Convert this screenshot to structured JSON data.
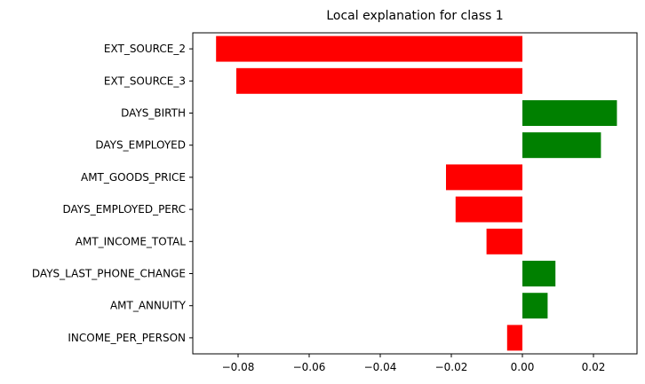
{
  "chart_data": {
    "type": "bar",
    "orientation": "horizontal",
    "title": "Local explanation for class 1",
    "xlabel": "",
    "ylabel": "",
    "categories": [
      "EXT_SOURCE_2",
      "EXT_SOURCE_3",
      "DAYS_BIRTH",
      "DAYS_EMPLOYED",
      "AMT_GOODS_PRICE",
      "DAYS_EMPLOYED_PERC",
      "AMT_INCOME_TOTAL",
      "DAYS_LAST_PHONE_CHANGE",
      "AMT_ANNUITY",
      "INCOME_PER_PERSON"
    ],
    "values": [
      -0.0862,
      -0.0805,
      0.0266,
      0.0221,
      -0.0215,
      -0.0188,
      -0.0101,
      0.0093,
      0.0071,
      -0.0043
    ],
    "xlim": [
      -0.092,
      0.0266
    ],
    "xticks": [
      -0.08,
      -0.06,
      -0.04,
      -0.02,
      0.0,
      0.02
    ],
    "xtick_labels": [
      "−0.08",
      "−0.06",
      "−0.04",
      "−0.02",
      "0.00",
      "0.02"
    ],
    "grid": false,
    "colors": {
      "positive": "#008000",
      "negative": "#ff0000"
    }
  }
}
